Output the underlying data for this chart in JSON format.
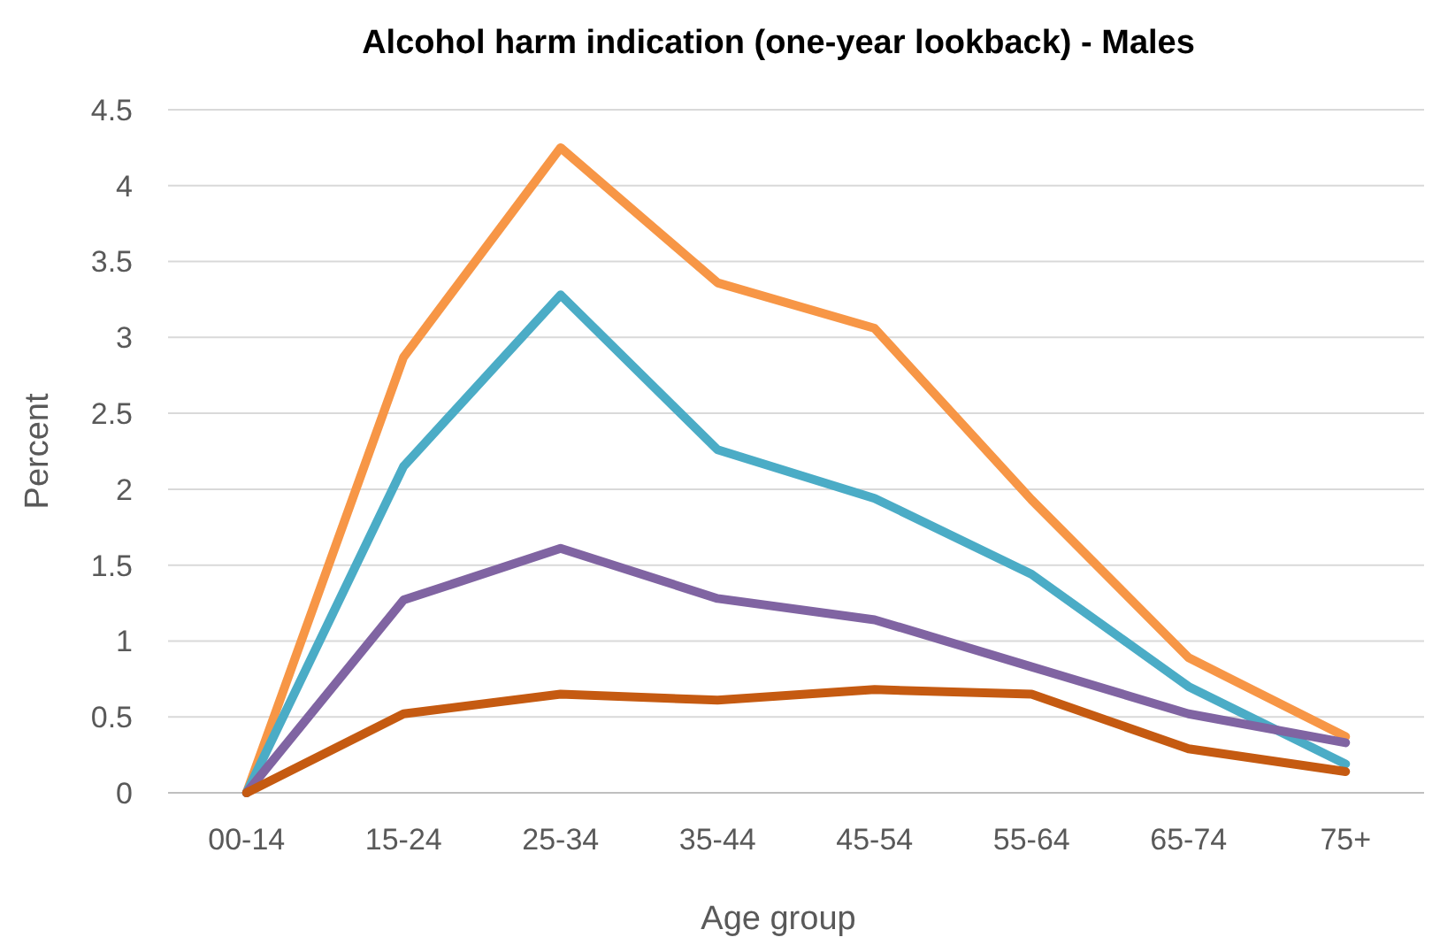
{
  "chart_data": {
    "type": "line",
    "title": "Alcohol harm indication (one-year lookback) - Males",
    "xlabel": "Age group",
    "ylabel": "Percent",
    "categories": [
      "00-14",
      "15-24",
      "25-34",
      "35-44",
      "45-54",
      "55-64",
      "65-74",
      "75+"
    ],
    "series": [
      {
        "color": "#f79646",
        "values": [
          0,
          2.87,
          4.25,
          3.36,
          3.06,
          1.93,
          0.89,
          0.37
        ]
      },
      {
        "color": "#4bacc6",
        "values": [
          0,
          2.15,
          3.28,
          2.26,
          1.94,
          1.44,
          0.7,
          0.19
        ]
      },
      {
        "color": "#8064a2",
        "values": [
          0,
          1.27,
          1.61,
          1.28,
          1.14,
          0.83,
          0.52,
          0.33
        ]
      },
      {
        "color": "#c55a11",
        "values": [
          0,
          0.52,
          0.65,
          0.61,
          0.68,
          0.65,
          0.29,
          0.14
        ]
      }
    ],
    "ylim": [
      0,
      4.5
    ],
    "yticks": [
      0,
      0.5,
      1,
      1.5,
      2,
      2.5,
      3,
      3.5,
      4,
      4.5
    ],
    "grid": "y",
    "marker": "none",
    "line_style": "solid"
  }
}
